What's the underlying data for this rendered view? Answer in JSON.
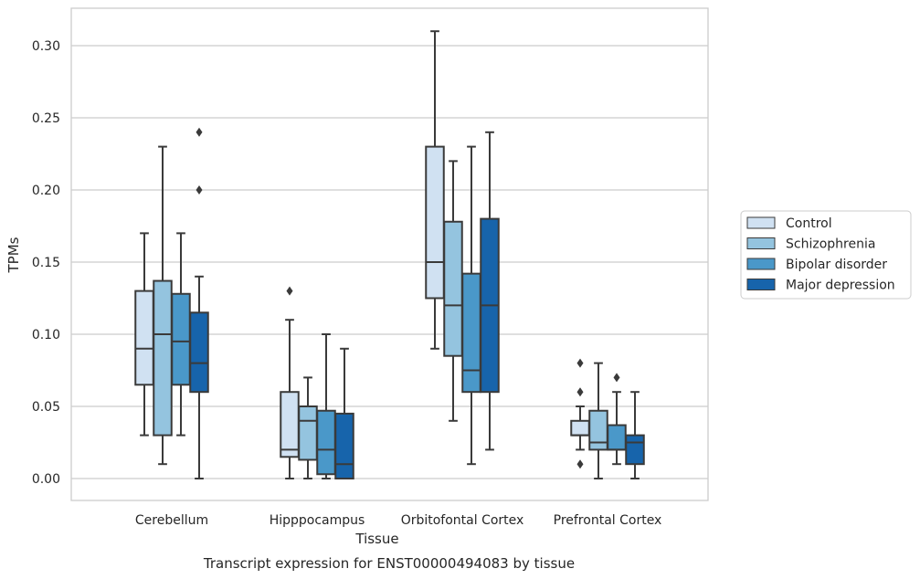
{
  "chart_data": {
    "type": "box",
    "title": "",
    "caption": "Transcript expression for ENST00000494083 by tissue",
    "xlabel": "Tissue",
    "ylabel": "TPMs",
    "ylim": [
      -0.015,
      0.325
    ],
    "yticks": [
      "0.00",
      "0.05",
      "0.10",
      "0.15",
      "0.20",
      "0.25",
      "0.30"
    ],
    "ytick_values": [
      0,
      0.05,
      0.1,
      0.15,
      0.2,
      0.25,
      0.3
    ],
    "grid": "horizontal",
    "legend_position": "right",
    "categories": [
      "Cerebellum",
      "Hipppocampus",
      "Orbitofontal Cortex",
      "Prefrontal Cortex"
    ],
    "series": [
      {
        "name": "Control",
        "color": "#d0e1f2",
        "boxes": [
          {
            "whislo": 0.03,
            "q1": 0.065,
            "med": 0.09,
            "q3": 0.13,
            "whishi": 0.17,
            "fliers": []
          },
          {
            "whislo": 0.0,
            "q1": 0.015,
            "med": 0.02,
            "q3": 0.06,
            "whishi": 0.11,
            "fliers": [
              0.13
            ]
          },
          {
            "whislo": 0.09,
            "q1": 0.125,
            "med": 0.15,
            "q3": 0.23,
            "whishi": 0.31,
            "fliers": []
          },
          {
            "whislo": 0.02,
            "q1": 0.03,
            "med": 0.03,
            "q3": 0.04,
            "whishi": 0.05,
            "fliers": [
              0.01,
              0.06,
              0.08
            ]
          }
        ]
      },
      {
        "name": "Schizophrenia",
        "color": "#94c4df",
        "boxes": [
          {
            "whislo": 0.01,
            "q1": 0.03,
            "med": 0.1,
            "q3": 0.137,
            "whishi": 0.23,
            "fliers": []
          },
          {
            "whislo": 0.0,
            "q1": 0.013,
            "med": 0.04,
            "q3": 0.05,
            "whishi": 0.07,
            "fliers": []
          },
          {
            "whislo": 0.04,
            "q1": 0.085,
            "med": 0.12,
            "q3": 0.178,
            "whishi": 0.22,
            "fliers": []
          },
          {
            "whislo": 0.0,
            "q1": 0.02,
            "med": 0.025,
            "q3": 0.047,
            "whishi": 0.08,
            "fliers": []
          }
        ]
      },
      {
        "name": "Bipolar disorder",
        "color": "#4a98c9",
        "boxes": [
          {
            "whislo": 0.03,
            "q1": 0.065,
            "med": 0.095,
            "q3": 0.128,
            "whishi": 0.17,
            "fliers": []
          },
          {
            "whislo": 0.0,
            "q1": 0.003,
            "med": 0.02,
            "q3": 0.047,
            "whishi": 0.1,
            "fliers": []
          },
          {
            "whislo": 0.01,
            "q1": 0.06,
            "med": 0.075,
            "q3": 0.142,
            "whishi": 0.23,
            "fliers": []
          },
          {
            "whislo": 0.01,
            "q1": 0.02,
            "med": 0.02,
            "q3": 0.037,
            "whishi": 0.06,
            "fliers": [
              0.07
            ]
          }
        ]
      },
      {
        "name": "Major depression",
        "color": "#1764ab",
        "boxes": [
          {
            "whislo": 0.0,
            "q1": 0.06,
            "med": 0.08,
            "q3": 0.115,
            "whishi": 0.14,
            "fliers": [
              0.2,
              0.24
            ]
          },
          {
            "whislo": 0.0,
            "q1": 0.0,
            "med": 0.01,
            "q3": 0.045,
            "whishi": 0.09,
            "fliers": []
          },
          {
            "whislo": 0.02,
            "q1": 0.06,
            "med": 0.12,
            "q3": 0.18,
            "whishi": 0.24,
            "fliers": []
          },
          {
            "whislo": 0.0,
            "q1": 0.01,
            "med": 0.025,
            "q3": 0.03,
            "whishi": 0.06,
            "fliers": []
          }
        ]
      }
    ]
  }
}
